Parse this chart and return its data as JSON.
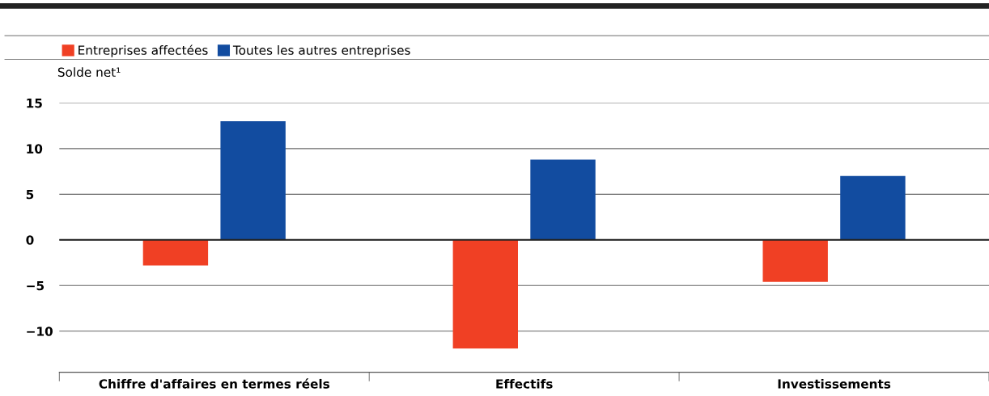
{
  "chart_data": {
    "type": "bar",
    "ylabel": "Solde net¹",
    "categories": [
      "Chiffre d'affaires en termes réels",
      "Effectifs",
      "Investissements"
    ],
    "series": [
      {
        "name": "Entreprises affectées",
        "color": "#f04024",
        "values": [
          -2.8,
          -11.9,
          -4.6
        ]
      },
      {
        "name": "Toutes les autres entreprises",
        "color": "#124ca0",
        "values": [
          13,
          8.8,
          7.0
        ]
      }
    ],
    "ylim": [
      -14.5,
      15
    ],
    "yticks": [
      {
        "value": -10,
        "label": "−10"
      },
      {
        "value": -5,
        "label": "−5"
      },
      0,
      5,
      10,
      15
    ],
    "grid": "y",
    "legend": "top left"
  }
}
